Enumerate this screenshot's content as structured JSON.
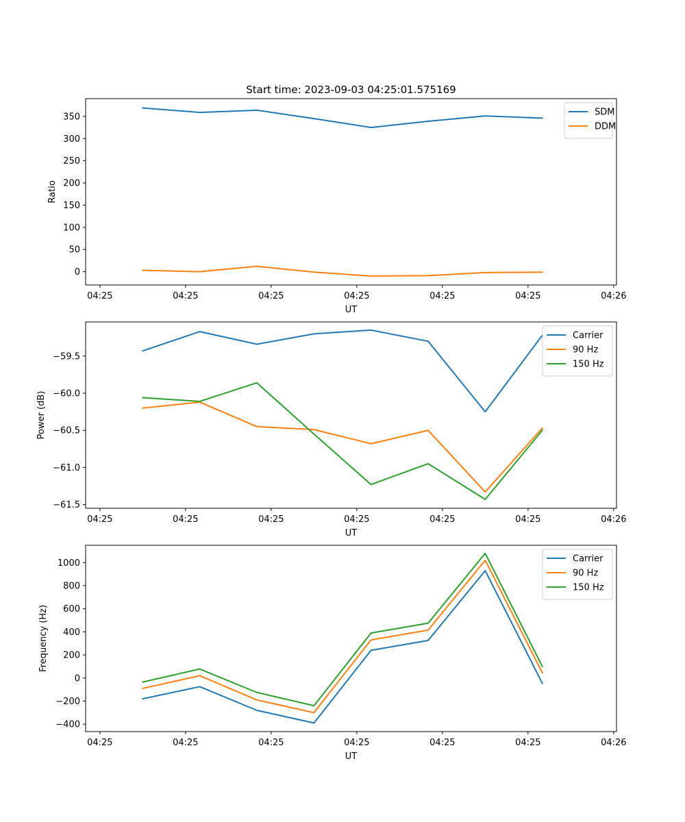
{
  "figure": {
    "title": "Start time: 2023-09-03 04:25:01.575169"
  },
  "chart_data": [
    {
      "type": "line",
      "title": "Start time: 2023-09-03 04:25:01.575169",
      "xlabel": "UT",
      "ylabel": "Ratio",
      "xlim": [
        -1,
        8.3
      ],
      "ylim": [
        -30,
        390
      ],
      "xticks": [
        -0.75,
        0.75,
        2.25,
        3.75,
        5.25,
        6.75,
        8.25
      ],
      "xtick_labels": [
        "04:25",
        "04:25",
        "04:25",
        "04:25",
        "04:25",
        "04:25",
        "04:26"
      ],
      "yticks": [
        0,
        50,
        100,
        150,
        200,
        250,
        300,
        350
      ],
      "ytick_labels": [
        "0",
        "50",
        "100",
        "150",
        "200",
        "250",
        "300",
        "350"
      ],
      "x": [
        0,
        1,
        2,
        3,
        4,
        5,
        6,
        7
      ],
      "series": [
        {
          "name": "SDM",
          "color": "#1f77b4",
          "values": [
            369,
            359,
            364,
            345,
            325,
            339,
            351,
            346
          ]
        },
        {
          "name": "DDM",
          "color": "#ff7f0e",
          "values": [
            3,
            0,
            12,
            -1,
            -10,
            -9,
            -2,
            -1
          ]
        }
      ],
      "legend": "top-right"
    },
    {
      "type": "line",
      "title": "",
      "xlabel": "UT",
      "ylabel": "Power (dB)",
      "xlim": [
        -1,
        8.3
      ],
      "ylim": [
        -61.55,
        -59.04
      ],
      "xticks": [
        -0.75,
        0.75,
        2.25,
        3.75,
        5.25,
        6.75,
        8.25
      ],
      "xtick_labels": [
        "04:25",
        "04:25",
        "04:25",
        "04:25",
        "04:25",
        "04:25",
        "04:26"
      ],
      "yticks": [
        -61.5,
        -61.0,
        -60.5,
        -60.0,
        -59.5
      ],
      "ytick_labels": [
        "−61.5",
        "−61.0",
        "−60.5",
        "−60.0",
        "−59.5"
      ],
      "x": [
        0,
        1,
        2,
        3,
        4,
        5,
        6,
        7
      ],
      "series": [
        {
          "name": "Carrier",
          "color": "#1f77b4",
          "values": [
            -59.43,
            -59.17,
            -59.34,
            -59.2,
            -59.15,
            -59.3,
            -60.25,
            -59.22
          ]
        },
        {
          "name": "90 Hz",
          "color": "#ff7f0e",
          "values": [
            -60.2,
            -60.12,
            -60.45,
            -60.49,
            -60.68,
            -60.5,
            -61.33,
            -60.47
          ]
        },
        {
          "name": "150 Hz",
          "color": "#2ca02c",
          "values": [
            -60.06,
            -60.11,
            -59.86,
            -60.55,
            -61.23,
            -60.95,
            -61.43,
            -60.5
          ]
        }
      ],
      "legend": "top-right"
    },
    {
      "type": "line",
      "title": "",
      "xlabel": "UT",
      "ylabel": "Frequency (Hz)",
      "xlim": [
        -1,
        8.3
      ],
      "ylim": [
        -464,
        1150
      ],
      "xticks": [
        -0.75,
        0.75,
        2.25,
        3.75,
        5.25,
        6.75,
        8.25
      ],
      "xtick_labels": [
        "04:25",
        "04:25",
        "04:25",
        "04:25",
        "04:25",
        "04:25",
        "04:26"
      ],
      "yticks": [
        -400,
        -200,
        0,
        200,
        400,
        600,
        800,
        1000
      ],
      "ytick_labels": [
        "−400",
        "−200",
        "0",
        "200",
        "400",
        "600",
        "800",
        "1000"
      ],
      "x": [
        0,
        1,
        2,
        3,
        4,
        5,
        6,
        7
      ],
      "series": [
        {
          "name": "Carrier",
          "color": "#1f77b4",
          "values": [
            -180,
            -75,
            -280,
            -390,
            240,
            325,
            930,
            -45
          ]
        },
        {
          "name": "90 Hz",
          "color": "#ff7f0e",
          "values": [
            -90,
            20,
            -190,
            -300,
            330,
            415,
            1020,
            45
          ]
        },
        {
          "name": "150 Hz",
          "color": "#2ca02c",
          "values": [
            -35,
            78,
            -125,
            -240,
            390,
            475,
            1080,
            100
          ]
        }
      ],
      "legend": "top-right"
    }
  ]
}
